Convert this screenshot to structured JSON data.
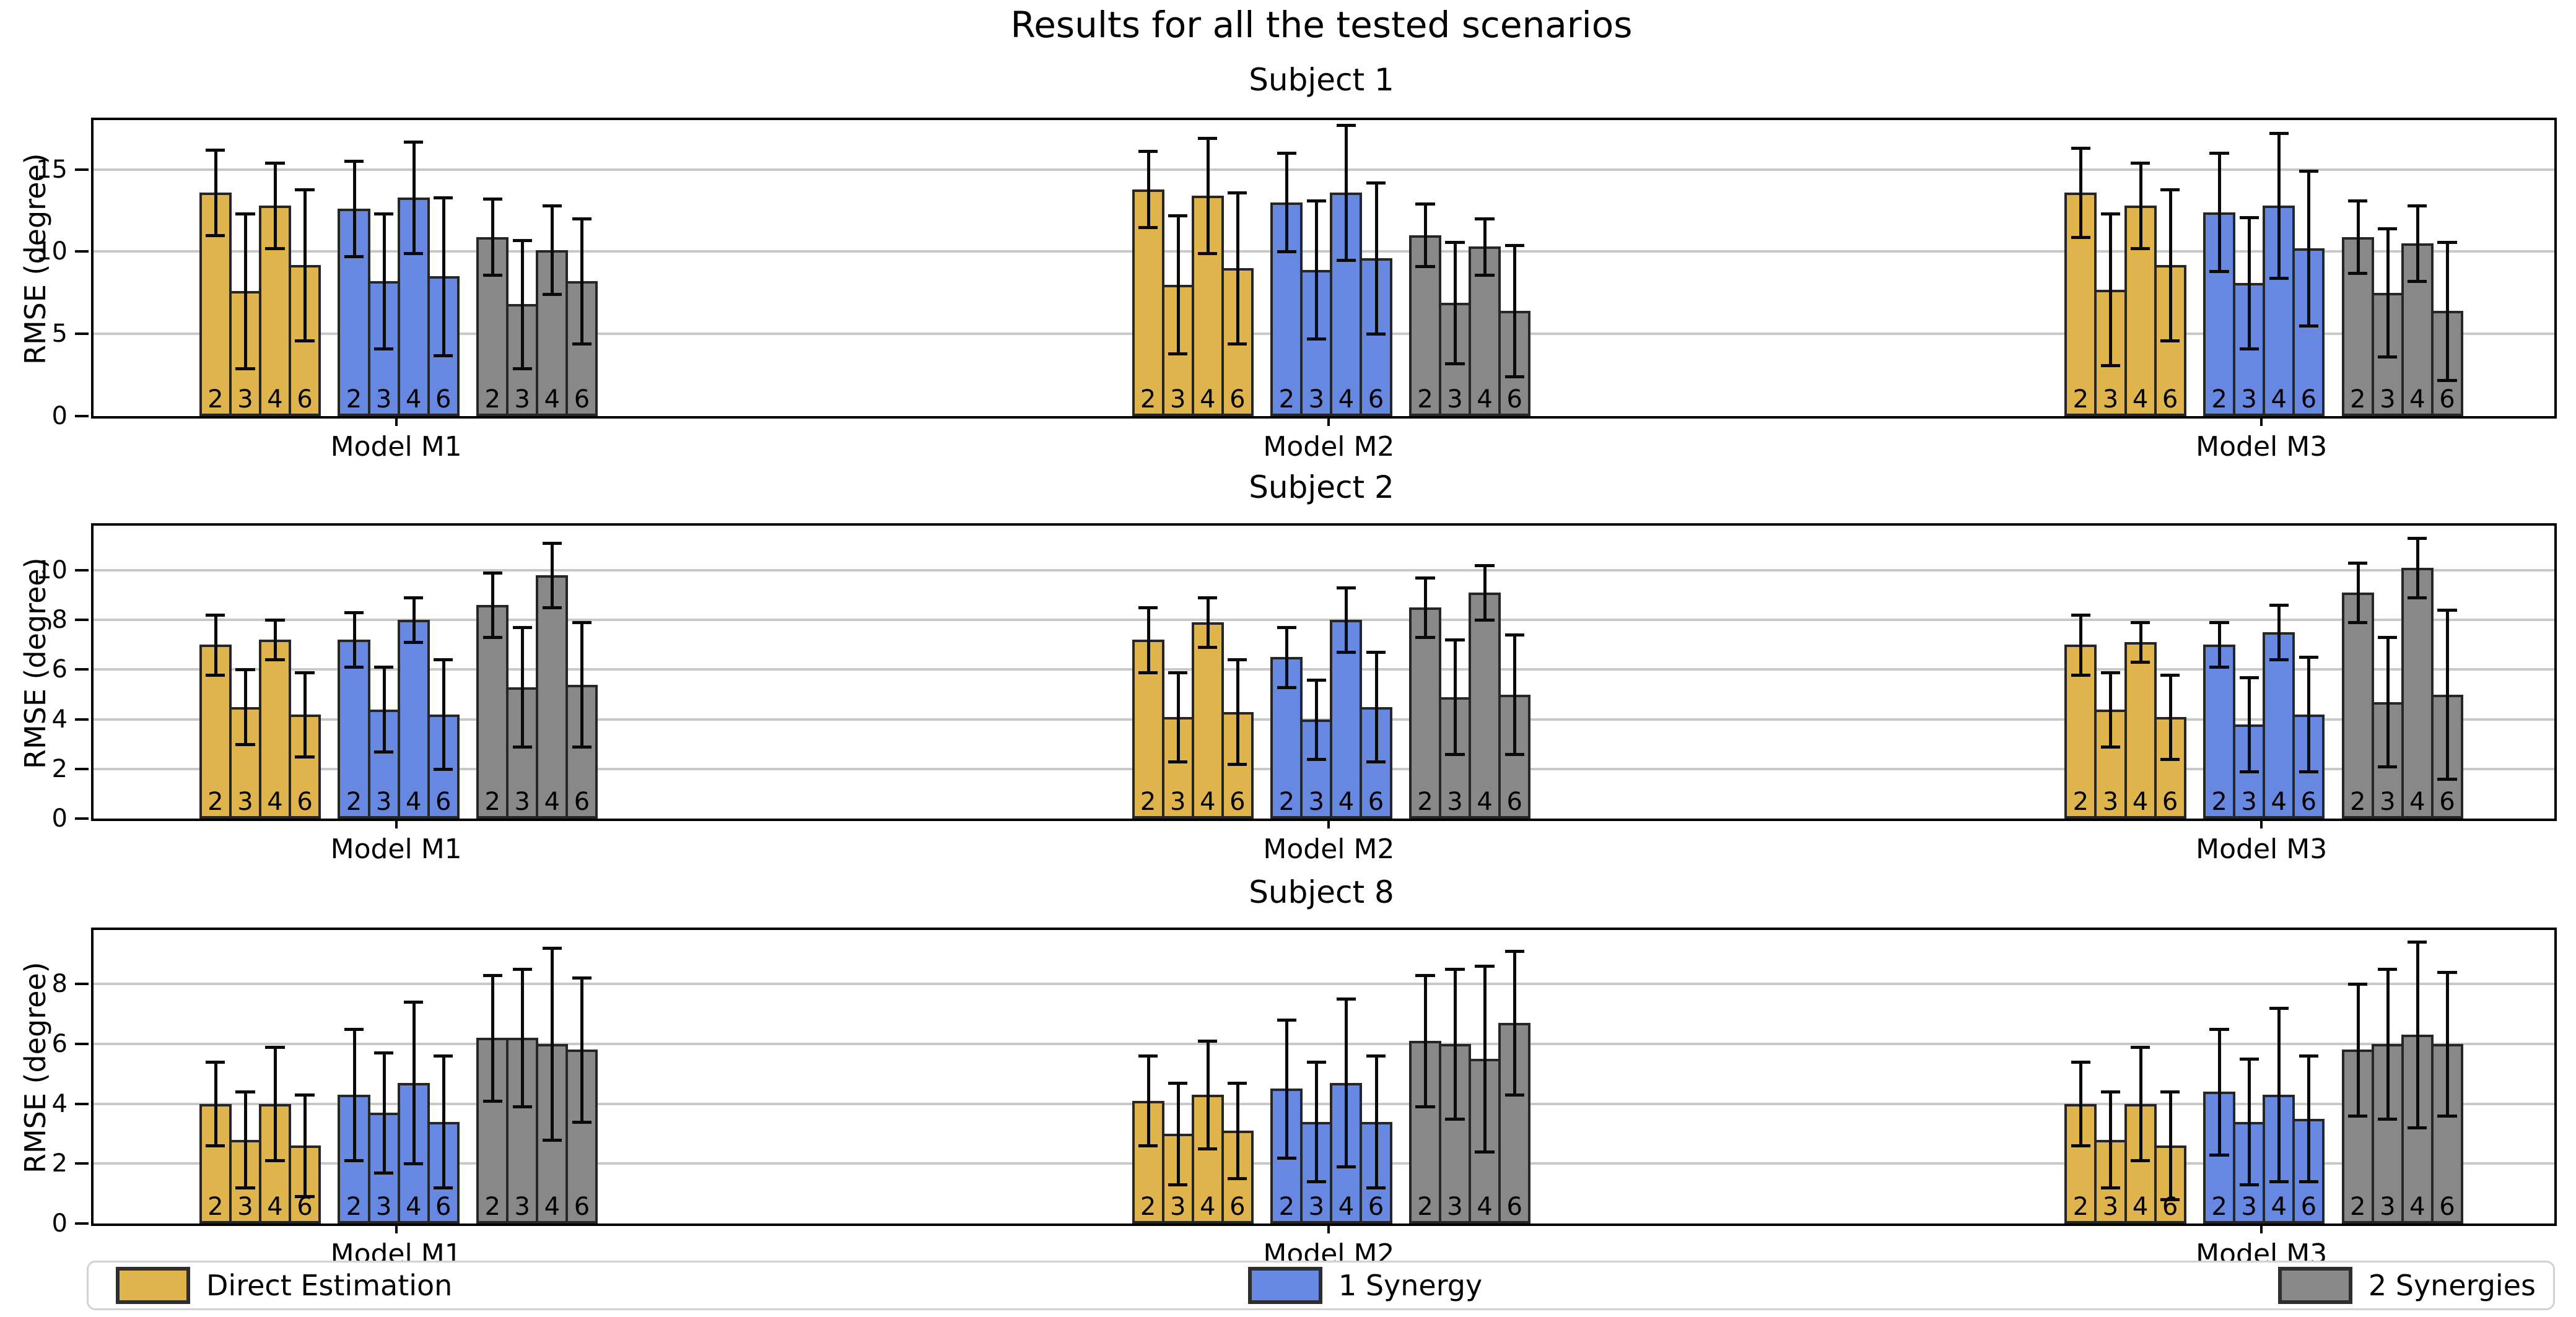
{
  "title": "Results for all the tested scenarios",
  "ylabel": "RMSE (degree)",
  "legend": {
    "items": [
      {
        "label": "Direct Estimation",
        "color": "#DFB44C"
      },
      {
        "label": "1 Synergy",
        "color": "#6788E0"
      },
      {
        "label": "2 Synergies",
        "color": "#888888"
      }
    ]
  },
  "colors": {
    "bar_edge": "#262626",
    "error_bar": "#0a0a0a",
    "grid": "#c9c9c9",
    "legend_border": "#d2d2d2"
  },
  "chart_data": [
    {
      "type": "bar",
      "title": "Subject 1",
      "ylabel": "RMSE (degree)",
      "ylim": [
        0,
        18
      ],
      "yticks": [
        0,
        5,
        10,
        15
      ],
      "grid": true,
      "groups": [
        "Model M1",
        "Model M2",
        "Model M3"
      ],
      "bar_labels": [
        "2",
        "3",
        "4",
        "6"
      ],
      "series": [
        {
          "name": "Direct Estimation",
          "color": "#DFB44C",
          "values": [
            [
              13.6,
              7.6,
              12.8,
              9.2
            ],
            [
              13.8,
              8.0,
              13.4,
              9.0
            ],
            [
              13.6,
              7.7,
              12.8,
              9.2
            ]
          ],
          "errors": [
            [
              2.6,
              4.7,
              2.6,
              4.6
            ],
            [
              2.3,
              4.2,
              3.5,
              4.6
            ],
            [
              2.7,
              4.6,
              2.6,
              4.6
            ]
          ]
        },
        {
          "name": "1 Synergy",
          "color": "#6788E0",
          "values": [
            [
              12.6,
              8.2,
              13.3,
              8.5
            ],
            [
              13.0,
              8.9,
              13.6,
              9.6
            ],
            [
              12.4,
              8.1,
              12.8,
              10.2
            ]
          ],
          "errors": [
            [
              2.9,
              4.1,
              3.4,
              4.8
            ],
            [
              3.0,
              4.2,
              4.1,
              4.6
            ],
            [
              3.6,
              4.0,
              4.4,
              4.7
            ]
          ]
        },
        {
          "name": "2 Synergies",
          "color": "#888888",
          "values": [
            [
              10.9,
              6.8,
              10.1,
              8.2
            ],
            [
              11.0,
              6.9,
              10.3,
              6.4
            ],
            [
              10.9,
              7.5,
              10.5,
              6.4
            ]
          ],
          "errors": [
            [
              2.3,
              3.9,
              2.7,
              3.8
            ],
            [
              1.9,
              3.7,
              1.7,
              4.0
            ],
            [
              2.2,
              3.9,
              2.3,
              4.2
            ]
          ]
        }
      ]
    },
    {
      "type": "bar",
      "title": "Subject 2",
      "ylabel": "RMSE (degree)",
      "ylim": [
        0,
        11.8
      ],
      "yticks": [
        0,
        2,
        4,
        6,
        8,
        10
      ],
      "grid": true,
      "groups": [
        "Model M1",
        "Model M2",
        "Model M3"
      ],
      "bar_labels": [
        "2",
        "3",
        "4",
        "6"
      ],
      "series": [
        {
          "name": "Direct Estimation",
          "color": "#DFB44C",
          "values": [
            [
              7.0,
              4.5,
              7.2,
              4.2
            ],
            [
              7.2,
              4.1,
              7.9,
              4.3
            ],
            [
              7.0,
              4.4,
              7.1,
              4.1
            ]
          ],
          "errors": [
            [
              1.2,
              1.5,
              0.8,
              1.7
            ],
            [
              1.3,
              1.8,
              1.0,
              2.1
            ],
            [
              1.2,
              1.5,
              0.8,
              1.7
            ]
          ]
        },
        {
          "name": "1 Synergy",
          "color": "#6788E0",
          "values": [
            [
              7.2,
              4.4,
              8.0,
              4.2
            ],
            [
              6.5,
              4.0,
              8.0,
              4.5
            ],
            [
              7.0,
              3.8,
              7.5,
              4.2
            ]
          ],
          "errors": [
            [
              1.1,
              1.7,
              0.9,
              2.2
            ],
            [
              1.2,
              1.6,
              1.3,
              2.2
            ],
            [
              0.9,
              1.9,
              1.1,
              2.3
            ]
          ]
        },
        {
          "name": "2 Synergies",
          "color": "#888888",
          "values": [
            [
              8.6,
              5.3,
              9.8,
              5.4
            ],
            [
              8.5,
              4.9,
              9.1,
              5.0
            ],
            [
              9.1,
              4.7,
              10.1,
              5.0
            ]
          ],
          "errors": [
            [
              1.3,
              2.4,
              1.3,
              2.5
            ],
            [
              1.2,
              2.3,
              1.1,
              2.4
            ],
            [
              1.2,
              2.6,
              1.2,
              3.4
            ]
          ]
        }
      ]
    },
    {
      "type": "bar",
      "title": "Subject 8",
      "ylabel": "RMSE (degree)",
      "ylim": [
        0,
        9.8
      ],
      "yticks": [
        0,
        2,
        4,
        6,
        8
      ],
      "grid": true,
      "groups": [
        "Model M1",
        "Model M2",
        "Model M3"
      ],
      "bar_labels": [
        "2",
        "3",
        "4",
        "6"
      ],
      "series": [
        {
          "name": "Direct Estimation",
          "color": "#DFB44C",
          "values": [
            [
              4.0,
              2.8,
              4.0,
              2.6
            ],
            [
              4.1,
              3.0,
              4.3,
              3.1
            ],
            [
              4.0,
              2.8,
              4.0,
              2.6
            ]
          ],
          "errors": [
            [
              1.4,
              1.6,
              1.9,
              1.7
            ],
            [
              1.5,
              1.7,
              1.8,
              1.6
            ],
            [
              1.4,
              1.6,
              1.9,
              1.8
            ]
          ]
        },
        {
          "name": "1 Synergy",
          "color": "#6788E0",
          "values": [
            [
              4.3,
              3.7,
              4.7,
              3.4
            ],
            [
              4.5,
              3.4,
              4.7,
              3.4
            ],
            [
              4.4,
              3.4,
              4.3,
              3.5
            ]
          ],
          "errors": [
            [
              2.2,
              2.0,
              2.7,
              2.2
            ],
            [
              2.3,
              2.0,
              2.8,
              2.2
            ],
            [
              2.1,
              2.1,
              2.9,
              2.1
            ]
          ]
        },
        {
          "name": "2 Synergies",
          "color": "#888888",
          "values": [
            [
              6.2,
              6.2,
              6.0,
              5.8
            ],
            [
              6.1,
              6.0,
              5.5,
              6.7
            ],
            [
              5.8,
              6.0,
              6.3,
              6.0
            ]
          ],
          "errors": [
            [
              2.1,
              2.3,
              3.2,
              2.4
            ],
            [
              2.2,
              2.5,
              3.1,
              2.4
            ],
            [
              2.2,
              2.5,
              3.1,
              2.4
            ]
          ]
        }
      ]
    }
  ]
}
